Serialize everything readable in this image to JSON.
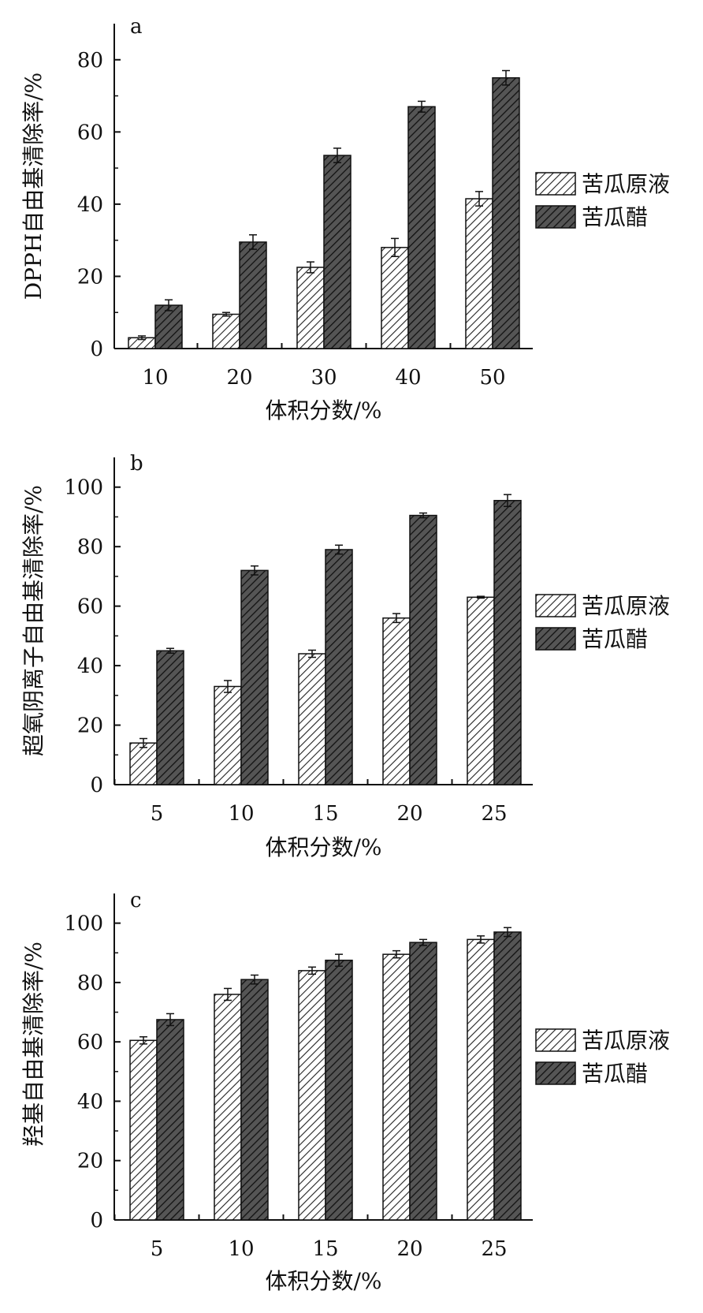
{
  "chart_data": [
    {
      "type": "bar",
      "panel_label": "a",
      "categories": [
        "10",
        "20",
        "30",
        "40",
        "50"
      ],
      "series": [
        {
          "name": "苦瓜原液",
          "values": [
            3,
            9.5,
            22.5,
            28,
            41.5
          ],
          "errors": [
            0.5,
            0.5,
            1.5,
            2.5,
            2
          ]
        },
        {
          "name": "苦瓜醋",
          "values": [
            12,
            29.5,
            53.5,
            67,
            75
          ],
          "errors": [
            1.5,
            2,
            2,
            1.5,
            2
          ]
        }
      ],
      "xlabel": "体积分数/%",
      "ylabel": "DPPH自由基清除率/%",
      "ylim": [
        0,
        90
      ],
      "yticks": [
        "0",
        "20",
        "40",
        "60",
        "80"
      ],
      "legend_position": "right"
    },
    {
      "type": "bar",
      "panel_label": "b",
      "categories": [
        "5",
        "10",
        "15",
        "20",
        "25"
      ],
      "series": [
        {
          "name": "苦瓜原液",
          "values": [
            14,
            33,
            44,
            56,
            63
          ],
          "errors": [
            1.5,
            2,
            1.2,
            1.5,
            0.3
          ]
        },
        {
          "name": "苦瓜醋",
          "values": [
            45,
            72,
            79,
            90.5,
            95.5
          ],
          "errors": [
            0.8,
            1.5,
            1.5,
            0.8,
            2
          ]
        }
      ],
      "xlabel": "体积分数/%",
      "ylabel": "超氧阴离子自由基清除率/%",
      "ylim": [
        0,
        110
      ],
      "yticks": [
        "0",
        "20",
        "40",
        "60",
        "80",
        "100"
      ],
      "legend_position": "right"
    },
    {
      "type": "bar",
      "panel_label": "c",
      "categories": [
        "5",
        "10",
        "15",
        "20",
        "25"
      ],
      "series": [
        {
          "name": "苦瓜原液",
          "values": [
            60.5,
            76,
            84,
            89.5,
            94.5
          ],
          "errors": [
            1.2,
            2,
            1.2,
            1.2,
            1.2
          ]
        },
        {
          "name": "苦瓜醋",
          "values": [
            67.5,
            81,
            87.5,
            93.5,
            97
          ],
          "errors": [
            2,
            1.5,
            2,
            1,
            1.5
          ]
        }
      ],
      "xlabel": "体积分数/%",
      "ylabel": "羟基自由基清除率/%",
      "ylim": [
        0,
        110
      ],
      "yticks": [
        "0",
        "20",
        "40",
        "60",
        "80",
        "100"
      ],
      "legend_position": "right"
    }
  ],
  "colors": {
    "raw_juice_fill": "#ffffff",
    "vinegar_fill": "#555555",
    "hatch_light": "#222222",
    "hatch_dark": "#111111"
  }
}
